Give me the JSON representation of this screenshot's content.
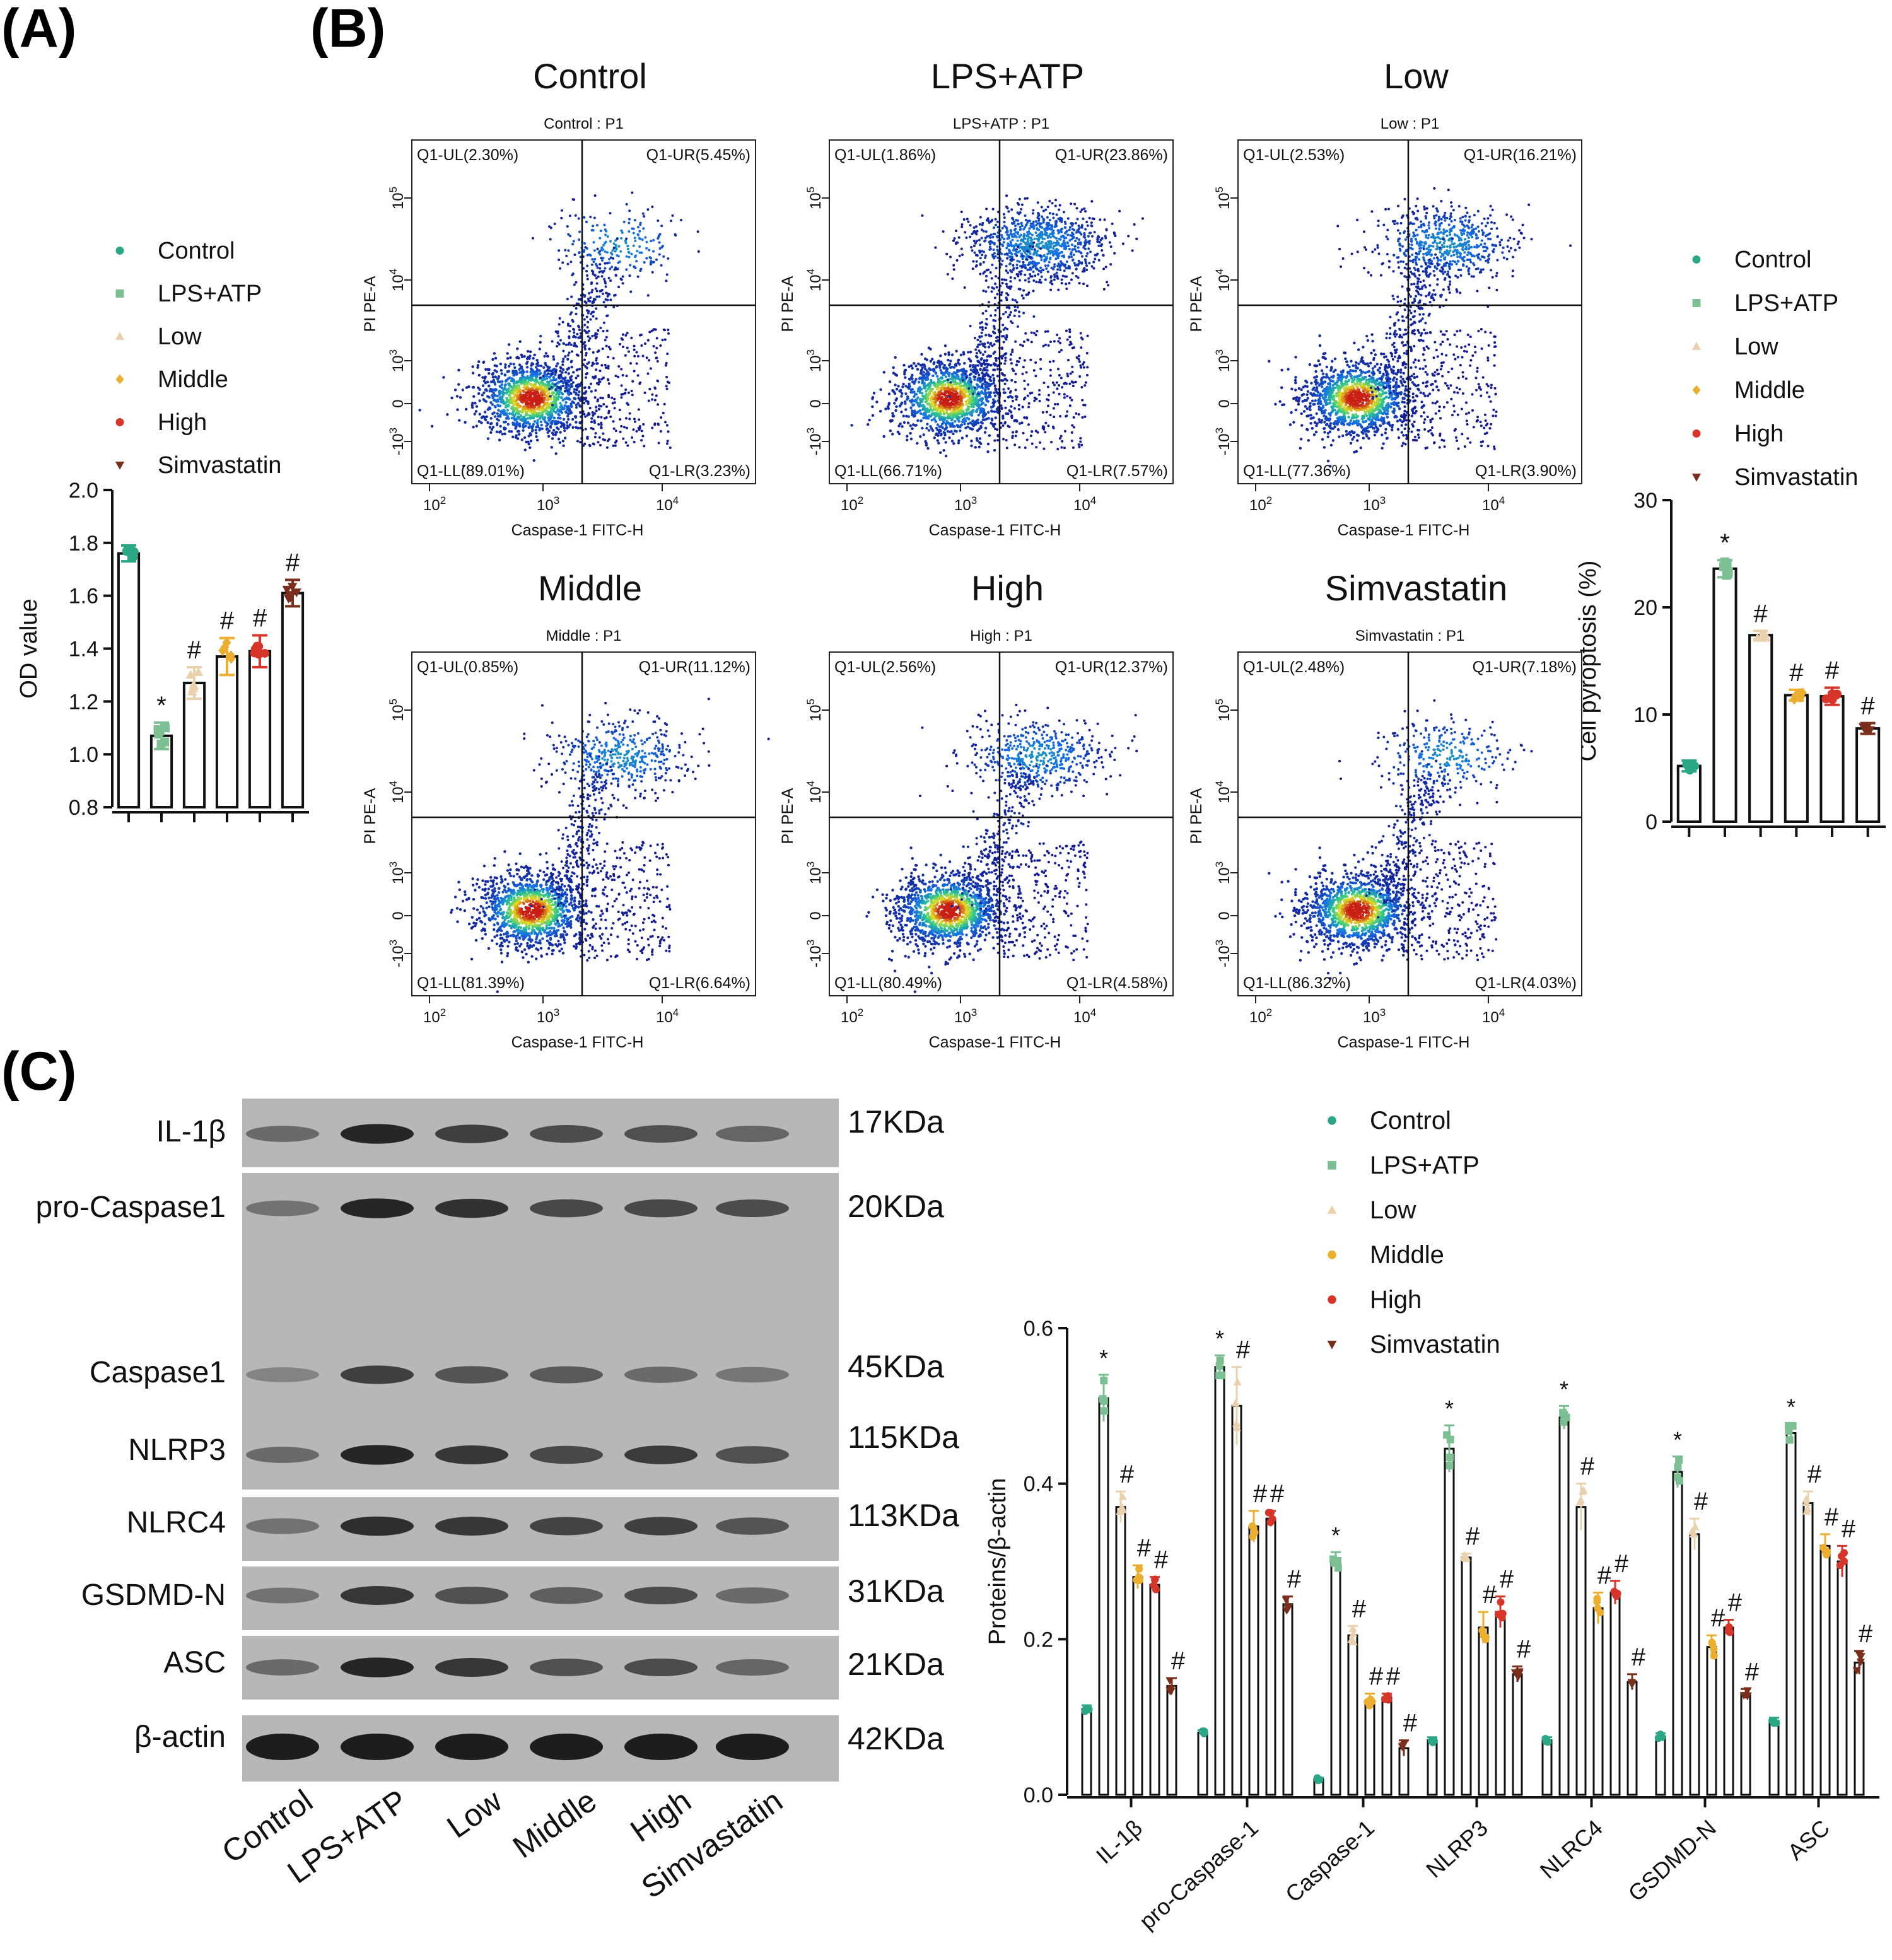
{
  "panels": {
    "A": {
      "label": "(A)"
    },
    "B": {
      "label": "(B)"
    },
    "C": {
      "label": "(C)"
    }
  },
  "colors": {
    "Control": "#2aa784",
    "LPS+ATP": "#7bbf93",
    "Low": "#ead1ae",
    "Middle": "#ebae2e",
    "High": "#d8352a",
    "Simvastatin": "#7a2e1c",
    "bar": "#111111"
  },
  "chart_data": [
    {
      "id": "panel-a",
      "type": "bar",
      "categories": [
        "Control",
        "LPS+ATP",
        "Low",
        "Middle",
        "High",
        "Simvastatin"
      ],
      "values": [
        1.76,
        1.07,
        1.27,
        1.37,
        1.39,
        1.61
      ],
      "errors": [
        0.03,
        0.05,
        0.06,
        0.07,
        0.06,
        0.05
      ],
      "markers": [
        "circle",
        "square",
        "triangle",
        "diamond",
        "circle",
        "tri-down"
      ],
      "annotations": [
        "",
        "*",
        "#",
        "#",
        "#",
        "#"
      ],
      "ylabel": "OD value",
      "ylim": [
        0.8,
        2.0
      ],
      "yticks": [
        0.8,
        1.0,
        1.2,
        1.4,
        1.6,
        1.8,
        2.0
      ],
      "ytick_labels": [
        "0.8",
        "1.0",
        "1.2",
        "1.4",
        "1.6",
        "1.8",
        "2.0"
      ],
      "legend": [
        "Control",
        "LPS+ATP",
        "Low",
        "Middle",
        "High",
        "Simvastatin"
      ]
    },
    {
      "id": "panel-b-flow",
      "type": "scatter",
      "xlabel": "Caspase-1 FITC-H",
      "ylabel": "PI PE-A",
      "plots": [
        {
          "name": "Control",
          "subtitle": "Control : P1",
          "UL": "Q1-UL(2.30%)",
          "UR": "Q1-UR(5.45%)",
          "LL": "Q1-LL(89.01%)",
          "LR": "Q1-LR(3.23%)"
        },
        {
          "name": "LPS+ATP",
          "subtitle": "LPS+ATP : P1",
          "UL": "Q1-UL(1.86%)",
          "UR": "Q1-UR(23.86%)",
          "LL": "Q1-LL(66.71%)",
          "LR": "Q1-LR(7.57%)"
        },
        {
          "name": "Low",
          "subtitle": "Low : P1",
          "UL": "Q1-UL(2.53%)",
          "UR": "Q1-UR(16.21%)",
          "LL": "Q1-LL(77.36%)",
          "LR": "Q1-LR(3.90%)"
        },
        {
          "name": "Middle",
          "subtitle": "Middle : P1",
          "UL": "Q1-UL(0.85%)",
          "UR": "Q1-UR(11.12%)",
          "LL": "Q1-LL(81.39%)",
          "LR": "Q1-LR(6.64%)"
        },
        {
          "name": "High",
          "subtitle": "High : P1",
          "UL": "Q1-UL(2.56%)",
          "UR": "Q1-UR(12.37%)",
          "LL": "Q1-LL(80.49%)",
          "LR": "Q1-LR(4.58%)"
        },
        {
          "name": "Simvastatin",
          "subtitle": "Simvastatin : P1",
          "UL": "Q1-UL(2.48%)",
          "UR": "Q1-UR(7.18%)",
          "LL": "Q1-LL(86.32%)",
          "LR": "Q1-LR(4.03%)"
        }
      ]
    },
    {
      "id": "panel-b-bar",
      "type": "bar",
      "categories": [
        "Control",
        "LPS+ATP",
        "Low",
        "Middle",
        "High",
        "Simvastatin"
      ],
      "values": [
        5.2,
        23.6,
        17.4,
        11.8,
        11.7,
        8.7
      ],
      "errors": [
        0.5,
        0.8,
        0.4,
        0.5,
        0.8,
        0.5
      ],
      "markers": [
        "circle",
        "square",
        "triangle",
        "diamond",
        "circle",
        "tri-down"
      ],
      "annotations": [
        "",
        "*",
        "#",
        "#",
        "#",
        "#"
      ],
      "ylabel": "Cell pyroptosis (%)",
      "ylim": [
        0,
        30
      ],
      "yticks": [
        0,
        10,
        20,
        30
      ],
      "ytick_labels": [
        "0",
        "10",
        "20",
        "30"
      ],
      "legend": [
        "Control",
        "LPS+ATP",
        "Low",
        "Middle",
        "High",
        "Simvastatin"
      ]
    },
    {
      "id": "panel-c-bar",
      "type": "bar",
      "categories": [
        "IL-1β",
        "pro-Caspase-1",
        "Caspase-1",
        "NLRP3",
        "NLRC4",
        "GSDMD-N",
        "ASC"
      ],
      "series": [
        {
          "name": "Control",
          "values": [
            0.11,
            0.08,
            0.02,
            0.07,
            0.07,
            0.075,
            0.095
          ],
          "errors": [
            0.005,
            0.003,
            0.002,
            0.004,
            0.004,
            0.004,
            0.004
          ],
          "marker": "circle"
        },
        {
          "name": "LPS+ATP",
          "values": [
            0.51,
            0.55,
            0.3,
            0.445,
            0.485,
            0.415,
            0.465
          ],
          "errors": [
            0.03,
            0.015,
            0.012,
            0.03,
            0.015,
            0.02,
            0.012
          ],
          "marker": "square"
        },
        {
          "name": "Low",
          "values": [
            0.37,
            0.5,
            0.205,
            0.305,
            0.37,
            0.335,
            0.375
          ],
          "errors": [
            0.02,
            0.05,
            0.012,
            0.005,
            0.03,
            0.02,
            0.015
          ],
          "marker": "triangle"
        },
        {
          "name": "Middle",
          "values": [
            0.28,
            0.345,
            0.12,
            0.215,
            0.24,
            0.19,
            0.32
          ],
          "errors": [
            0.015,
            0.02,
            0.01,
            0.02,
            0.02,
            0.015,
            0.015
          ],
          "marker": "circle"
        },
        {
          "name": "High",
          "values": [
            0.27,
            0.355,
            0.125,
            0.235,
            0.26,
            0.215,
            0.3
          ],
          "errors": [
            0.01,
            0.01,
            0.005,
            0.02,
            0.015,
            0.01,
            0.02
          ],
          "marker": "circle"
        },
        {
          "name": "Simvastatin",
          "values": [
            0.14,
            0.245,
            0.06,
            0.155,
            0.145,
            0.13,
            0.17
          ],
          "errors": [
            0.01,
            0.01,
            0.01,
            0.01,
            0.01,
            0.006,
            0.015
          ],
          "marker": "tri-down"
        }
      ],
      "annotations": [
        "",
        "*",
        "#",
        "#",
        "#",
        "#"
      ],
      "ylabel": "Proteins/β-actin",
      "ylim": [
        0,
        0.6
      ],
      "yticks": [
        0,
        0.2,
        0.4,
        0.6
      ],
      "ytick_labels": [
        "0.0",
        "0.2",
        "0.4",
        "0.6"
      ],
      "legend": [
        "Control",
        "LPS+ATP",
        "Low",
        "Middle",
        "High",
        "Simvastatin"
      ]
    }
  ],
  "western_blot": {
    "lanes": [
      "Control",
      "LPS+ATP",
      "Low",
      "Middle",
      "High",
      "Simvastatin"
    ],
    "proteins": [
      {
        "name": "IL-1β",
        "size": "17KDa",
        "intensity": [
          0.55,
          0.95,
          0.8,
          0.72,
          0.7,
          0.58
        ]
      },
      {
        "name": "pro-Caspase1",
        "size": "20KDa",
        "intensity": [
          0.5,
          0.95,
          0.88,
          0.75,
          0.75,
          0.72
        ]
      },
      {
        "name": "Caspase1",
        "size": "45KDa",
        "intensity": [
          0.4,
          0.8,
          0.68,
          0.65,
          0.55,
          0.48
        ]
      },
      {
        "name": "NLRP3",
        "size": "115KDa",
        "intensity": [
          0.55,
          0.95,
          0.85,
          0.75,
          0.82,
          0.7
        ]
      },
      {
        "name": "NLRC4",
        "size": "113KDa",
        "intensity": [
          0.5,
          0.9,
          0.85,
          0.78,
          0.8,
          0.68
        ]
      },
      {
        "name": "GSDMD-N",
        "size": "31KDa",
        "intensity": [
          0.5,
          0.85,
          0.7,
          0.62,
          0.72,
          0.55
        ]
      },
      {
        "name": "ASC",
        "size": "21KDa",
        "intensity": [
          0.55,
          0.95,
          0.85,
          0.7,
          0.72,
          0.58
        ]
      },
      {
        "name": "β-actin",
        "size": "42KDa",
        "intensity": [
          1,
          1,
          1,
          1,
          1,
          1
        ]
      }
    ]
  }
}
